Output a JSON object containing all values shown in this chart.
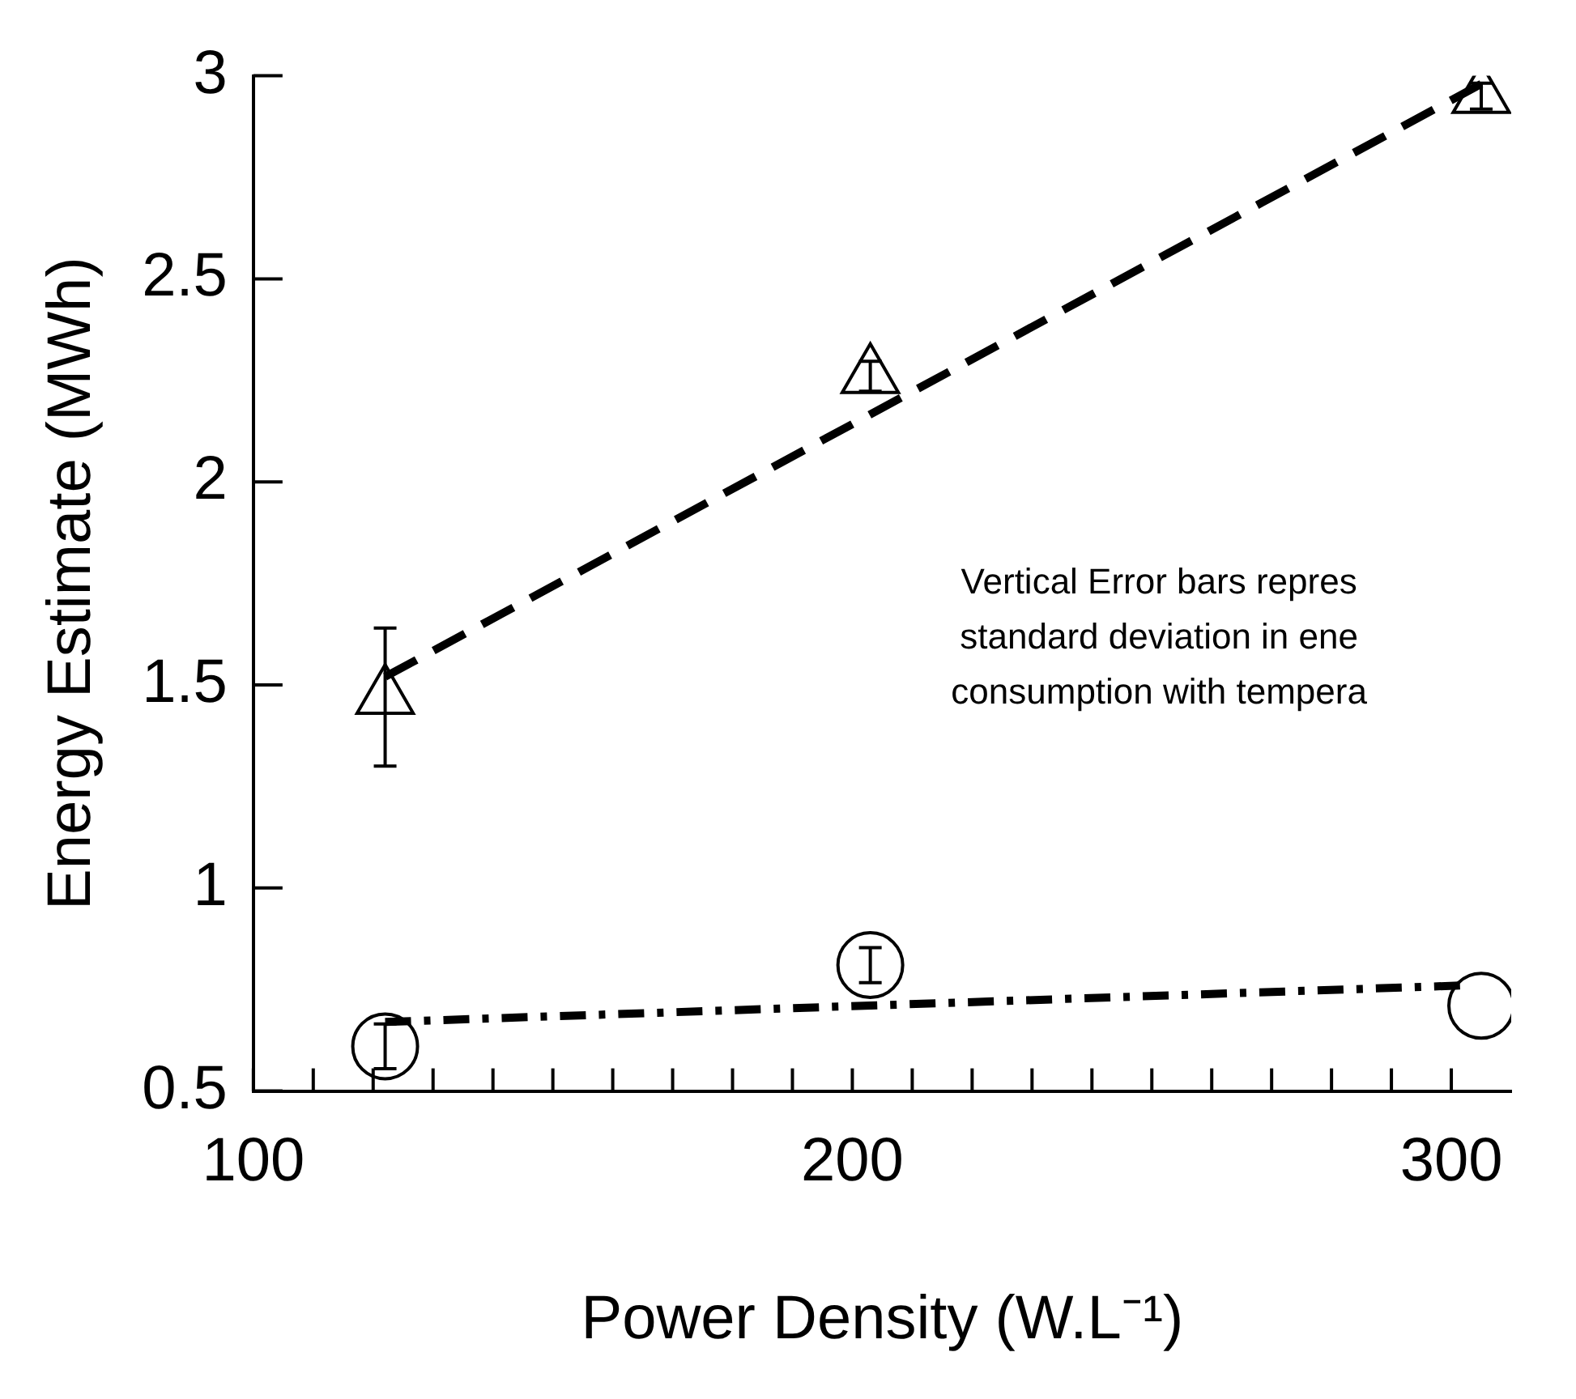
{
  "chart_data": {
    "type": "scatter",
    "xlabel": "Power Density (W.L⁻¹)",
    "ylabel": "Energy Estimate (MWh)",
    "xlim": [
      100,
      310
    ],
    "xticks": [
      100,
      {
        "value": 110,
        "label": null
      },
      {
        "value": 120,
        "label": null
      },
      {
        "value": 130,
        "label": null
      },
      {
        "value": 140,
        "label": null
      },
      {
        "value": 150,
        "label": null
      },
      {
        "value": 160,
        "label": null
      },
      {
        "value": 170,
        "label": null
      },
      {
        "value": 180,
        "label": null
      },
      {
        "value": 190,
        "label": null
      },
      200,
      {
        "value": 210,
        "label": null
      },
      {
        "value": 220,
        "label": null
      },
      {
        "value": 230,
        "label": null
      },
      {
        "value": 240,
        "label": null
      },
      {
        "value": 250,
        "label": null
      },
      {
        "value": 260,
        "label": null
      },
      {
        "value": 270,
        "label": null
      },
      {
        "value": 280,
        "label": null
      },
      {
        "value": 290,
        "label": null
      },
      300
    ],
    "ylim": [
      0.5,
      3
    ],
    "yticks": [
      0.5,
      1,
      1.5,
      2,
      2.5,
      3
    ],
    "grid": false,
    "legend": false,
    "series": [
      {
        "marker": "triangle",
        "color": "#000000",
        "x": [
          122,
          203,
          305
        ],
        "values": [
          1.47,
          2.26,
          2.95
        ],
        "errors": [
          0.17,
          0.037,
          0.032
        ]
      },
      {
        "marker": "circle",
        "color": "#000000",
        "x": [
          122,
          203,
          305
        ],
        "values": [
          0.61,
          0.81,
          0.71
        ],
        "errors": [
          0.055,
          0.043,
          null
        ]
      },
      {
        "type": "line",
        "marker": "none",
        "line_style": "dashed",
        "color": "#000000",
        "x": [
          122,
          305
        ],
        "values": [
          1.52,
          2.98
        ]
      },
      {
        "type": "line",
        "marker": "none",
        "line_style": "dotted",
        "color": "#000000",
        "x": [
          122,
          302
        ],
        "values": [
          0.67,
          0.76
        ]
      }
    ],
    "annotations": [
      "Vertical Error bars repres\nstandard deviation in ene\nconsumption with tempera"
    ]
  }
}
